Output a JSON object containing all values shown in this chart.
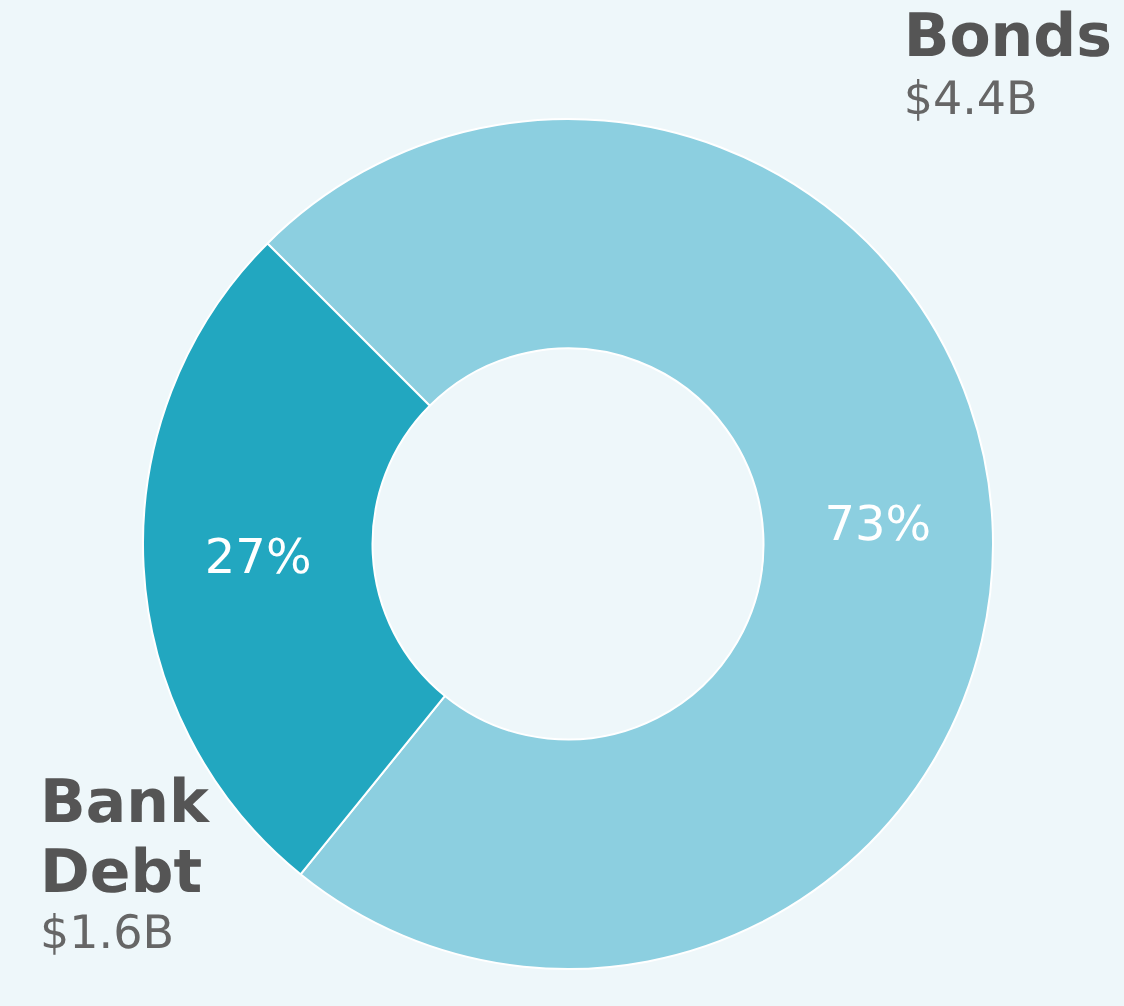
{
  "chart_data": {
    "type": "donut",
    "categories": [
      "Bonds",
      "Bank Debt"
    ],
    "values": [
      4.4,
      1.6
    ],
    "colors": [
      "#8ccfe0",
      "#22a7c0"
    ],
    "value_labels": [
      "$4.4B",
      "$1.6B"
    ],
    "annotations": [
      {
        "text": "73%",
        "x": "Bonds"
      },
      {
        "text": "27%",
        "x": "Bank Debt"
      }
    ],
    "legend": false
  }
}
